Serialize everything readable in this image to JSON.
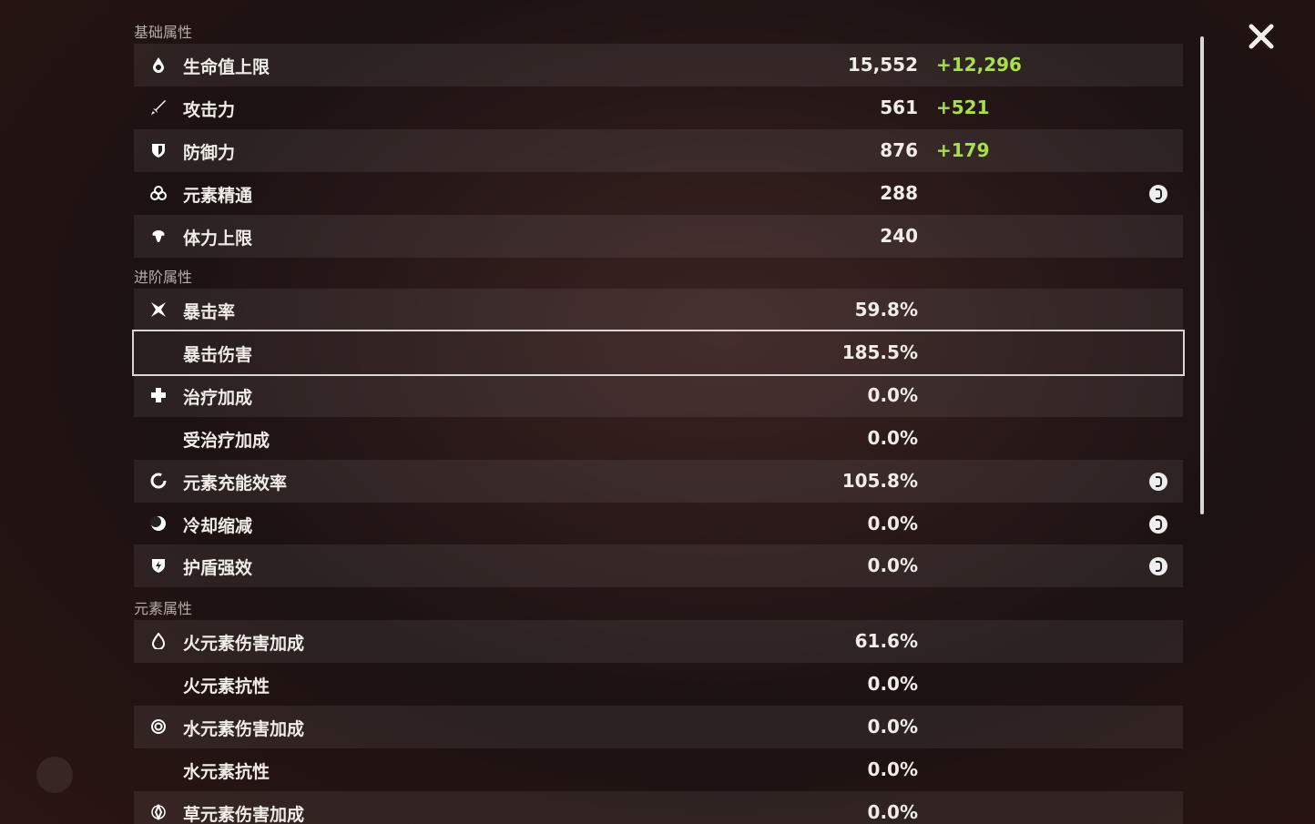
{
  "sections": [
    {
      "title": "基础属性",
      "rows": [
        {
          "name": "生命值上限",
          "value": "15,552",
          "bonus": "+12,296"
        },
        {
          "name": "攻击力",
          "value": "561",
          "bonus": "+521"
        },
        {
          "name": "防御力",
          "value": "876",
          "bonus": "+179"
        },
        {
          "name": "元素精通",
          "value": "288",
          "help": true
        },
        {
          "name": "体力上限",
          "value": "240"
        }
      ]
    },
    {
      "title": "进阶属性",
      "rows": [
        {
          "name": "暴击率",
          "value": "59.8%"
        },
        {
          "name": "暴击伤害",
          "value": "185.5%",
          "selected": true
        },
        {
          "name": "治疗加成",
          "value": "0.0%"
        },
        {
          "name": "受治疗加成",
          "value": "0.0%"
        },
        {
          "name": "元素充能效率",
          "value": "105.8%",
          "help": true
        },
        {
          "name": "冷却缩减",
          "value": "0.0%",
          "help": true
        },
        {
          "name": "护盾强效",
          "value": "0.0%",
          "help": true
        }
      ]
    },
    {
      "title": "元素属性",
      "rows": [
        {
          "name": "火元素伤害加成",
          "value": "61.6%"
        },
        {
          "name": "火元素抗性",
          "value": "0.0%"
        },
        {
          "name": "水元素伤害加成",
          "value": "0.0%"
        },
        {
          "name": "水元素抗性",
          "value": "0.0%"
        },
        {
          "name": "草元素伤害加成",
          "value": "0.0%"
        }
      ]
    }
  ]
}
